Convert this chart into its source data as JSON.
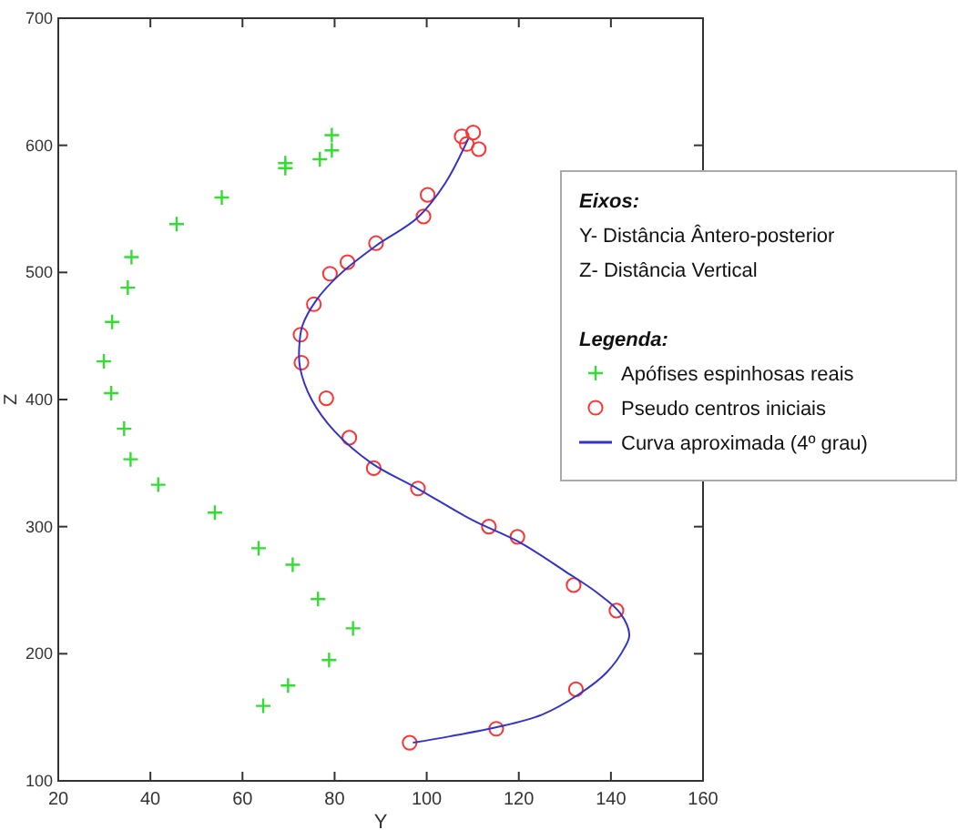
{
  "chart_data": {
    "type": "scatter",
    "xlabel": "Y",
    "ylabel": "Z",
    "xlim": [
      20,
      160
    ],
    "ylim": [
      100,
      700
    ],
    "xticks": [
      20,
      40,
      60,
      80,
      100,
      120,
      140,
      160
    ],
    "yticks": [
      100,
      200,
      300,
      400,
      500,
      600,
      700
    ],
    "grid": false,
    "legend": "right",
    "legend_title": "Legenda:",
    "annotations": [
      "Eixos:",
      "Y- Distância Ântero-posterior",
      "Z- Distância Vertical"
    ],
    "series": [
      {
        "name": "Apófises espinhosas reais",
        "marker": "cross",
        "color": "#33dd33",
        "x": [
          79.4,
          79.4,
          69.3,
          69.3,
          76.8,
          55.5,
          45.7,
          35.9,
          35.1,
          31.7,
          29.9,
          31.5,
          34.3,
          35.7,
          41.7,
          54.0,
          63.5,
          70.9,
          76.4,
          84.0,
          78.8,
          69.9,
          64.5
        ],
        "values": [
          608,
          596,
          586,
          582,
          589,
          559,
          538,
          512,
          488,
          461,
          430,
          405,
          377,
          353,
          333,
          311,
          283,
          270,
          243,
          220,
          195,
          175,
          159
        ]
      },
      {
        "name": "Pseudo centros iniciais",
        "marker": "circle",
        "color": "#ff3333",
        "x": [
          107.6,
          110.1,
          108.7,
          111.3,
          100.2,
          99.3,
          89.0,
          82.8,
          79.0,
          75.5,
          72.6,
          72.8,
          78.2,
          83.2,
          88.5,
          98.1,
          113.5,
          119.7,
          131.9,
          141.2,
          132.4,
          115.1,
          96.3
        ],
        "values": [
          607,
          610,
          601,
          597,
          561,
          544,
          523,
          508,
          499,
          475,
          451,
          429,
          401,
          370,
          346,
          330,
          300,
          292,
          254,
          234,
          172,
          141,
          130
        ]
      },
      {
        "name": "Curva aproximada (4º grau)",
        "type": "line",
        "marker": "none",
        "line_style": "solid",
        "color": "#3333cc",
        "x": [
          97,
          105,
          115,
          125,
          133,
          139,
          143,
          144,
          142,
          137,
          130,
          120,
          110,
          98,
          88,
          80,
          75,
          72.5,
          72.3,
          73,
          76,
          81,
          89,
          98,
          104,
          109
        ],
        "values": [
          130,
          135,
          142,
          152,
          168,
          185,
          205,
          215,
          232,
          248,
          265,
          288,
          305,
          330,
          350,
          375,
          400,
          425,
          440,
          458,
          478,
          498,
          521,
          543,
          570,
          605
        ]
      }
    ]
  }
}
